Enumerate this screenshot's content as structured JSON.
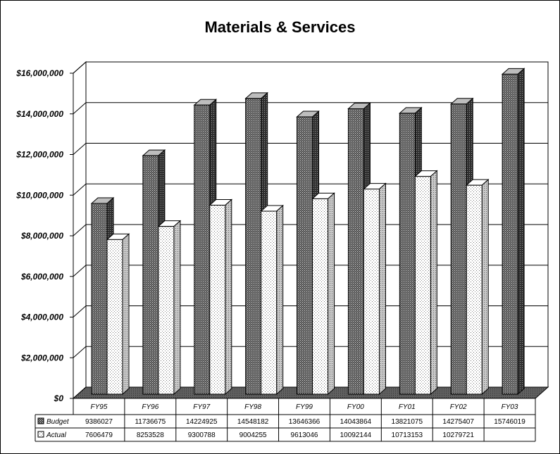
{
  "chart_data": {
    "type": "bar",
    "title": "Materials & Services",
    "categories": [
      "FY95",
      "FY96",
      "FY97",
      "FY98",
      "FY99",
      "FY00",
      "FY01",
      "FY02",
      "FY03"
    ],
    "series": [
      {
        "name": "Budget",
        "values": [
          9386027,
          11736675,
          14224925,
          14548182,
          13646366,
          14043864,
          13821075,
          14275407,
          15746019
        ],
        "table_labels": [
          "9386027",
          "11736675",
          "14224925",
          "14548182",
          "13646366",
          "14043864",
          "13821075",
          "14275407",
          "15746019"
        ],
        "pattern": "dark-dotted",
        "color": "#808080"
      },
      {
        "name": "Actual",
        "values": [
          7606479,
          8253528,
          9300788,
          9004255,
          9613046,
          10092144,
          10713153,
          10279721,
          null
        ],
        "table_labels": [
          "7606479",
          "8253528",
          "9300788",
          "9004255",
          "9613046",
          "10092144",
          "10713153",
          "10279721",
          ""
        ],
        "pattern": "light-dotted",
        "color": "#ffffff"
      }
    ],
    "ylim": [
      0,
      16000000
    ],
    "yticks": [
      "$0",
      "$2,000,000",
      "$4,000,000",
      "$6,000,000",
      "$8,000,000",
      "$10,000,000",
      "$12,000,000",
      "$14,000,000",
      "$16,000,000"
    ],
    "grid": true,
    "style": "3d-column-with-data-table"
  }
}
